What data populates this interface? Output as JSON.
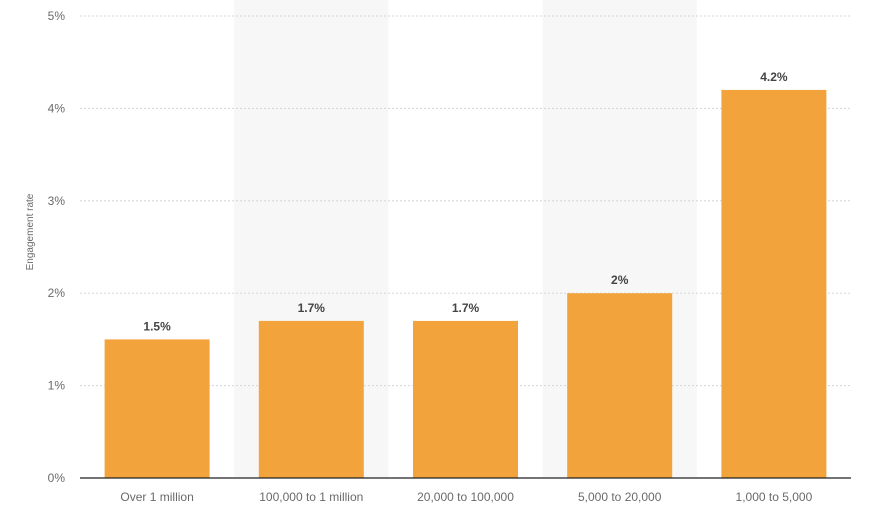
{
  "chart_data": {
    "type": "bar",
    "title": "",
    "xlabel": "",
    "ylabel": "Engagement rate",
    "categories": [
      "Over 1 million",
      "100,000 to 1 million",
      "20,000 to 100,000",
      "5,000 to 20,000",
      "1,000 to 5,000"
    ],
    "values": [
      1.5,
      1.7,
      1.7,
      2.0,
      4.2
    ],
    "value_labels": [
      "1.5%",
      "1.7%",
      "1.7%",
      "2%",
      "4.2%"
    ],
    "ylim": [
      0,
      5
    ],
    "yticks": [
      0,
      1,
      2,
      3,
      4,
      5
    ],
    "ytick_labels": [
      "0%",
      "1%",
      "2%",
      "3%",
      "4%",
      "5%"
    ],
    "grid": true,
    "legend": "none",
    "colors": {
      "bar": "#f2a33c",
      "alt_band": "#f7f7f7",
      "grid": "#d5d5d5",
      "axis": "#222222"
    }
  }
}
